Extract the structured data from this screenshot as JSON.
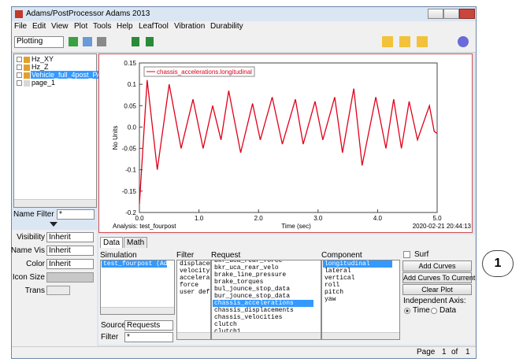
{
  "window": {
    "title": "Adams/PostProcessor Adams 2013"
  },
  "menu": [
    "File",
    "Edit",
    "View",
    "Plot",
    "Tools",
    "Help",
    "LeafTool",
    "Vibration",
    "Durability"
  ],
  "toolbar": {
    "mode": "Plotting"
  },
  "tree": [
    "Hz_XY",
    "Hz_Z",
    "Vehicle_full_4post_PAC",
    "page_1"
  ],
  "name_filter": {
    "label": "Name Filter",
    "value": "*"
  },
  "properties": [
    {
      "label": "Visibility",
      "value": "Inherit"
    },
    {
      "label": "Name Vis",
      "value": "Inherit"
    },
    {
      "label": "Color",
      "value": "Inherit"
    },
    {
      "label": "Icon Size"
    },
    {
      "label": "Trans"
    }
  ],
  "chart_data": {
    "type": "line",
    "x_label": "Time (sec)",
    "y_label": "No Units",
    "analysis": "Analysis:  test_fourpost",
    "timestamp": "2020-02-21 20:44:13",
    "x": [
      0,
      0.13,
      0.3,
      0.5,
      0.7,
      0.9,
      1.07,
      1.23,
      1.37,
      1.5,
      1.7,
      1.9,
      2.03,
      2.23,
      2.4,
      2.62,
      2.75,
      2.95,
      3.08,
      3.28,
      3.41,
      3.6,
      3.74,
      3.97,
      4.14,
      4.27,
      4.4,
      4.53,
      4.67,
      4.87,
      4.95,
      5.0
    ],
    "series": [
      {
        "name": "chassis_accelerations.longitudinal",
        "color": "#e0001a",
        "values": [
          -0.18,
          0.11,
          -0.1,
          0.1,
          -0.05,
          0.065,
          -0.05,
          0.05,
          -0.03,
          0.085,
          -0.06,
          0.055,
          -0.03,
          0.07,
          -0.04,
          0.065,
          -0.04,
          0.06,
          -0.03,
          0.07,
          -0.06,
          0.09,
          -0.09,
          0.07,
          -0.05,
          0.065,
          -0.05,
          0.06,
          -0.03,
          0.05,
          -0.01,
          -0.015
        ]
      }
    ],
    "xlim": [
      0,
      5
    ],
    "ylim": [
      -0.2,
      0.15
    ],
    "xticks": [
      {
        "value": 0,
        "label": "0.0"
      },
      {
        "value": 1,
        "label": "1.0"
      },
      {
        "value": 2,
        "label": "2.0"
      },
      {
        "value": 3,
        "label": "3.0"
      },
      {
        "value": 4,
        "label": "4.0"
      },
      {
        "value": 5,
        "label": "5.0"
      }
    ],
    "yticks": [
      0.15,
      0.1,
      0.05,
      {
        "value": 0,
        "label": "0.0"
      },
      -0.05,
      -0.1,
      -0.15,
      -0.2
    ],
    "legend": "upper-left",
    "grid": false
  },
  "tabs": [
    "Data",
    "Math"
  ],
  "simulation": {
    "label": "Simulation",
    "items": [
      "test_fourpost    (Adam"
    ]
  },
  "filter": {
    "label": "Filter",
    "items": [
      "displaceme",
      "velocity",
      "accelerati",
      "force",
      "user defir"
    ]
  },
  "request": {
    "label": "Request",
    "items": [
      "bkr_uca_rear_force",
      "bkr_uca_rear_velo",
      "brake_line_pressure",
      "brake_torques",
      "bul_jounce_stop_data",
      "bur_jounce_stop_data",
      "chassis_accelerations",
      "chassis_displacements",
      "chassis_velocities",
      "clutch",
      "clutch1"
    ]
  },
  "component": {
    "label": "Component",
    "items": [
      "longitudinal",
      "lateral",
      "vertical",
      "roll",
      "pitch",
      "yaw"
    ]
  },
  "source": {
    "label": "Source",
    "value": "Requests"
  },
  "filter_field": {
    "label": "Filter",
    "value": "*"
  },
  "surf": "Surf",
  "buttons": [
    "Add Curves",
    "Add Curves To Current",
    "Clear Plot"
  ],
  "independent_axis": {
    "label": "Independent Axis:",
    "options": [
      "Time",
      "Data"
    ]
  },
  "page": {
    "label": "Page",
    "current": "1",
    "of": "of",
    "total": "1"
  },
  "callout": "1"
}
